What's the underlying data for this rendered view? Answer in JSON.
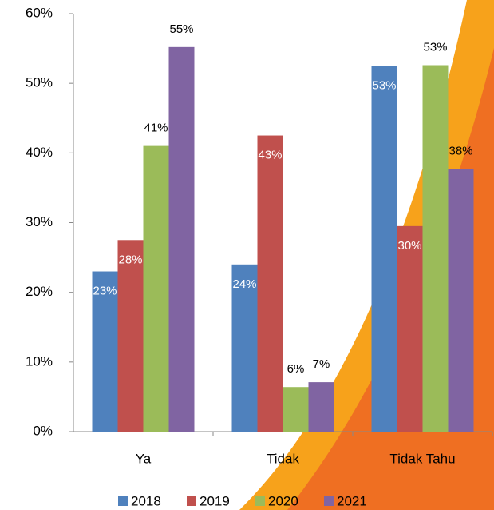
{
  "chart_data": {
    "type": "bar",
    "categories": [
      "Ya",
      "Tidak",
      "Tidak Tahu"
    ],
    "series": [
      {
        "name": "2018",
        "color": "#4f81bd",
        "values": [
          23,
          24,
          52.5
        ],
        "value_labels": [
          "23%",
          "24%",
          "53%"
        ]
      },
      {
        "name": "2019",
        "color": "#c0504d",
        "values": [
          27.5,
          42.5,
          29.5
        ],
        "value_labels": [
          "28%",
          "43%",
          "30%"
        ]
      },
      {
        "name": "2020",
        "color": "#9bbb59",
        "values": [
          41,
          6.4,
          52.6
        ],
        "value_labels": [
          "41%",
          "6%",
          "53%"
        ]
      },
      {
        "name": "2021",
        "color": "#8064a2",
        "values": [
          55.2,
          7.1,
          37.7
        ],
        "value_labels": [
          "55%",
          "7%",
          "38%"
        ]
      }
    ],
    "ylim": [
      0,
      60
    ],
    "yticks": [
      {
        "value": 0,
        "label": "0%"
      },
      {
        "value": 10,
        "label": "10%"
      },
      {
        "value": 20,
        "label": "20%"
      },
      {
        "value": 30,
        "label": "30%"
      },
      {
        "value": 40,
        "label": "40%"
      },
      {
        "value": 50,
        "label": "50%"
      },
      {
        "value": 60,
        "label": "60%"
      }
    ],
    "grid": false
  }
}
